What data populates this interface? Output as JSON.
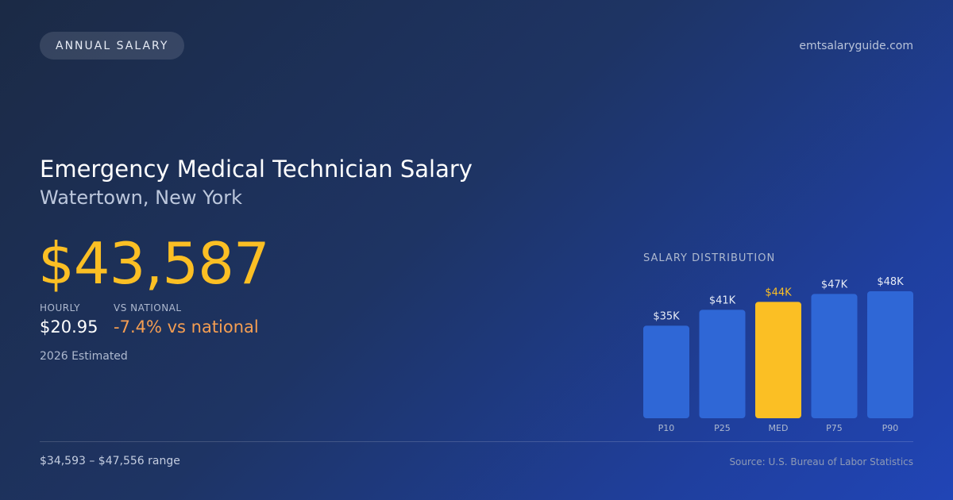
{
  "badge": "ANNUAL SALARY",
  "site": "emtsalaryguide.com",
  "title": "Emergency Medical Technician Salary",
  "location": "Watertown, New York",
  "salary": "$43,587",
  "hourly": {
    "label": "HOURLY",
    "value": "$20.95"
  },
  "national": {
    "label": "VS NATIONAL",
    "value": "-7.4% vs national"
  },
  "estimate_note": "2026 Estimated",
  "range": "$34,593 – $47,556 range",
  "source": "Source: U.S. Bureau of Labor Statistics",
  "colors": {
    "bar": "#2f67d6",
    "highlight": "#fbbf24",
    "accent": "#fbbf24",
    "negative": "#f59e52"
  },
  "chart_data": {
    "type": "bar",
    "title": "SALARY DISTRIBUTION",
    "categories": [
      "P10",
      "P25",
      "MED",
      "P75",
      "P90"
    ],
    "values": [
      35,
      41,
      44,
      47,
      48
    ],
    "value_labels": [
      "$35K",
      "$41K",
      "$44K",
      "$47K",
      "$48K"
    ],
    "highlight_index": 2,
    "ylim": [
      0,
      48
    ],
    "grid": false,
    "legend": "none"
  }
}
